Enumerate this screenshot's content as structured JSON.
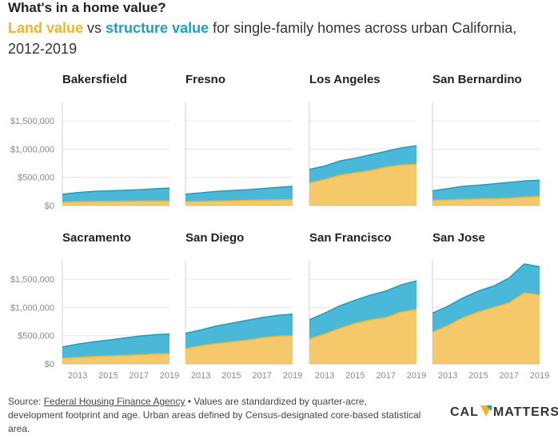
{
  "header": {
    "title": "What's in a home value?",
    "subtitle_land": "Land value",
    "subtitle_vs": " vs ",
    "subtitle_struct": "structure value",
    "subtitle_rest": " for single-family homes across urban California, 2012-2019"
  },
  "colors": {
    "land": "#f5c96a",
    "land_line": "#f0b429",
    "structure": "#4ab8d8",
    "structure_line": "#1e9cc0"
  },
  "chart_data": {
    "type": "area",
    "x": [
      2012,
      2013,
      2014,
      2015,
      2016,
      2017,
      2018,
      2019
    ],
    "x_ticks": [
      "2013",
      "2015",
      "2017",
      "2019"
    ],
    "y_ticks": [
      "$0",
      "$500,000",
      "$1,000,000",
      "$1,500,000"
    ],
    "ylim": [
      0,
      1800000
    ],
    "series_names": [
      "Land value",
      "structure value"
    ],
    "stacked": true,
    "panels": [
      {
        "name": "Bakersfield",
        "land": [
          60000,
          65000,
          70000,
          72000,
          75000,
          78000,
          80000,
          82000
        ],
        "total": [
          200000,
          230000,
          250000,
          260000,
          270000,
          280000,
          295000,
          310000
        ]
      },
      {
        "name": "Fresno",
        "land": [
          70000,
          75000,
          80000,
          85000,
          90000,
          95000,
          100000,
          105000
        ],
        "total": [
          200000,
          225000,
          250000,
          265000,
          280000,
          300000,
          320000,
          340000
        ]
      },
      {
        "name": "Los Angeles",
        "land": [
          400000,
          460000,
          540000,
          580000,
          620000,
          680000,
          720000,
          730000
        ],
        "total": [
          640000,
          700000,
          790000,
          840000,
          900000,
          960000,
          1020000,
          1060000
        ]
      },
      {
        "name": "San Bernardino",
        "land": [
          90000,
          100000,
          110000,
          115000,
          120000,
          130000,
          150000,
          160000
        ],
        "total": [
          260000,
          300000,
          340000,
          360000,
          385000,
          410000,
          435000,
          450000
        ]
      },
      {
        "name": "Sacramento",
        "land": [
          100000,
          115000,
          130000,
          140000,
          150000,
          160000,
          175000,
          180000
        ],
        "total": [
          300000,
          350000,
          390000,
          420000,
          455000,
          490000,
          515000,
          530000
        ]
      },
      {
        "name": "San Diego",
        "land": [
          270000,
          320000,
          360000,
          390000,
          420000,
          460000,
          490000,
          500000
        ],
        "total": [
          540000,
          600000,
          670000,
          720000,
          770000,
          820000,
          860000,
          880000
        ]
      },
      {
        "name": "San Francisco",
        "land": [
          440000,
          530000,
          630000,
          720000,
          780000,
          820000,
          920000,
          960000
        ],
        "total": [
          780000,
          900000,
          1030000,
          1130000,
          1220000,
          1290000,
          1400000,
          1470000
        ]
      },
      {
        "name": "San Jose",
        "land": [
          560000,
          680000,
          820000,
          920000,
          1000000,
          1080000,
          1260000,
          1220000
        ],
        "total": [
          900000,
          1020000,
          1170000,
          1290000,
          1380000,
          1520000,
          1770000,
          1720000
        ]
      }
    ]
  },
  "footer": {
    "source_label": "Source: ",
    "source_link": "Federal Housing Finance Agency",
    "note": " • Values are standardized by quarter-acre, development footprint and age. Urban areas defined by Census-designated core-based statistical area."
  },
  "logo": {
    "left": "CAL",
    "right": "MATTERS"
  }
}
